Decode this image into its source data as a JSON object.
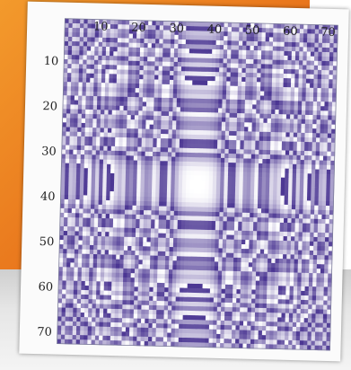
{
  "chart_data": {
    "type": "heatmap",
    "title": "",
    "xlabel": "",
    "ylabel": "",
    "grid_size": 72,
    "xlim": [
      1,
      72
    ],
    "ylim": [
      1,
      72
    ],
    "y_axis_direction": "top-to-bottom",
    "x_ticks": [
      "10",
      "20",
      "30",
      "40",
      "50",
      "60",
      "70"
    ],
    "y_ticks": [
      "10",
      "20",
      "30",
      "40",
      "50",
      "60",
      "70"
    ],
    "x_tick_values": [
      10,
      20,
      30,
      40,
      50,
      60,
      70
    ],
    "y_tick_values": [
      10,
      20,
      30,
      40,
      50,
      60,
      70
    ],
    "value_rule": "mod(i^4 + j^4, 72) / 72 with i,j measured from the center",
    "colorscale": [
      "#ffffff",
      "#4a3592"
    ]
  },
  "colors": {
    "background_orange": "#e8731b",
    "background_gray": "#d9d9d9",
    "card": "#fbfbfb",
    "dark_purple": "#4a3592",
    "light": "#ffffff"
  }
}
